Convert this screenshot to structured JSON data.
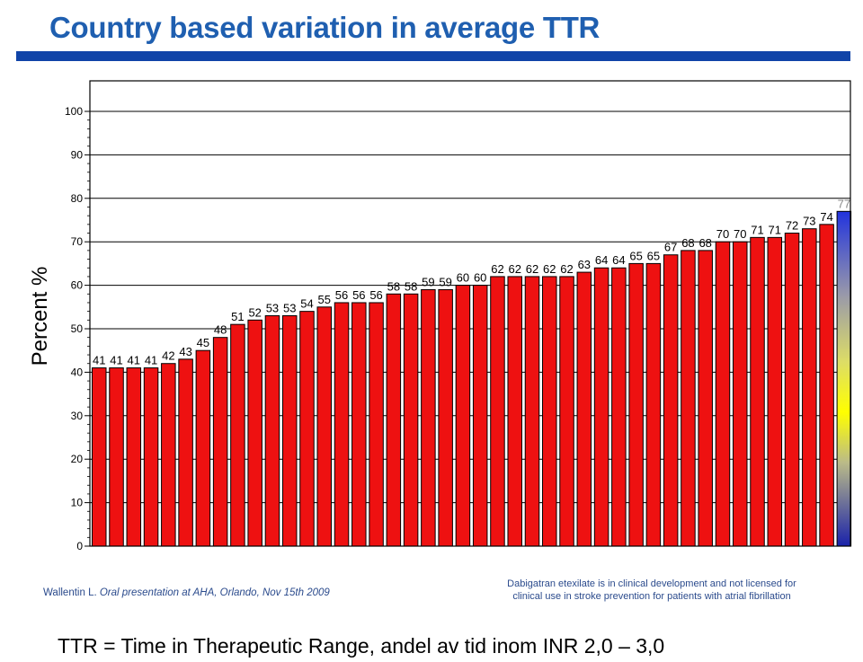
{
  "title": "Country based variation in average TTR",
  "footer": {
    "source_author": "Wallentin L.",
    "source_detail": "Oral presentation at AHA, Orlando, Nov 15th 2009",
    "disclaimer_line1": "Dabigatran etexilate is in clinical development and not licensed for",
    "disclaimer_line2": "clinical use in stroke prevention for patients with atrial fibrillation"
  },
  "caption": "TTR = Time in Therapeutic Range, andel av tid inom INR 2,0 – 3,0",
  "colors": {
    "title": "#1f5fb0",
    "title_rule": "#1044a8",
    "bar": "#ee1111",
    "highlight_gradient_top": "#2233dd",
    "highlight_gradient_mid": "#ffff00",
    "highlight_gradient_bottom": "#1a22aa"
  },
  "chart_data": {
    "type": "bar",
    "ylabel": "Percent %",
    "xlabel": "",
    "ylim": [
      0,
      100
    ],
    "yticks": [
      0,
      10,
      20,
      30,
      40,
      50,
      60,
      70,
      80,
      90,
      100
    ],
    "grid": true,
    "values": [
      41,
      41,
      41,
      41,
      42,
      43,
      45,
      48,
      51,
      52,
      53,
      53,
      54,
      55,
      56,
      56,
      56,
      58,
      58,
      59,
      59,
      60,
      60,
      62,
      62,
      62,
      62,
      62,
      63,
      64,
      64,
      65,
      65,
      67,
      68,
      68,
      70,
      70,
      71,
      71,
      72,
      73,
      74,
      77
    ],
    "highlighted_index": 43
  }
}
